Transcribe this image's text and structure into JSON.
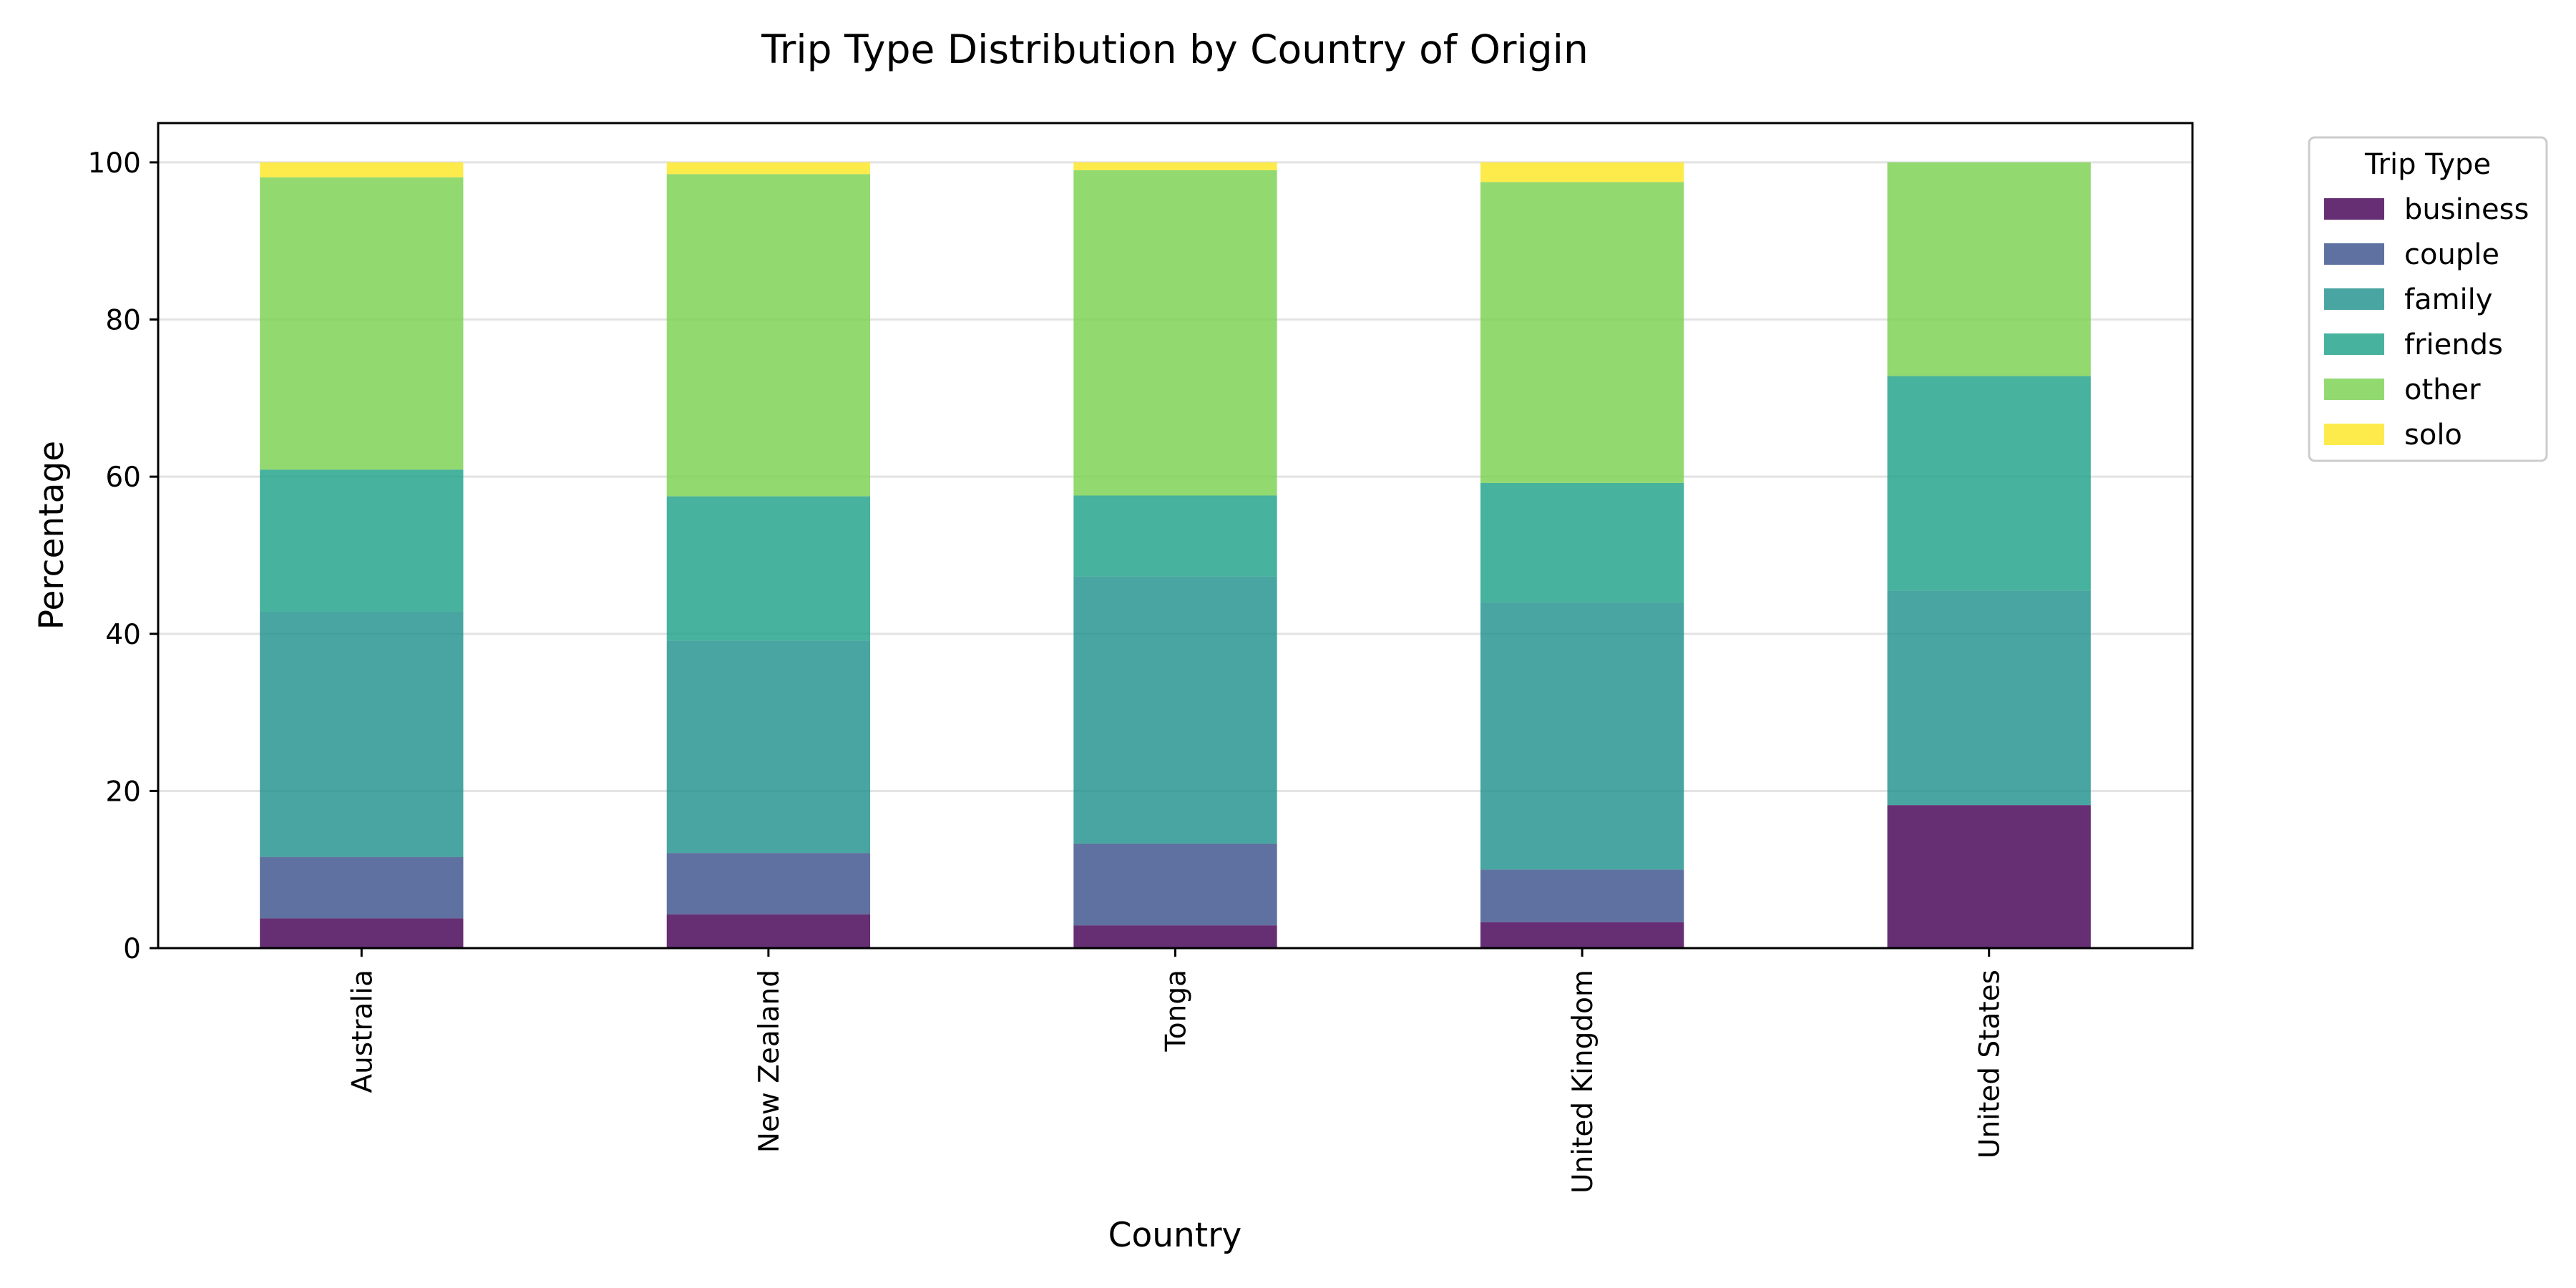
{
  "chart_data": {
    "type": "bar",
    "stacked": true,
    "title": "Trip Type Distribution by Country of Origin",
    "xlabel": "Country",
    "ylabel": "Percentage",
    "ylim": [
      0,
      105
    ],
    "yticks": [
      0,
      20,
      40,
      60,
      80,
      100
    ],
    "grid": "y",
    "legend_title": "Trip Type",
    "legend_position": "outside-top-right",
    "categories": [
      "Australia",
      "New Zealand",
      "Tonga",
      "United Kingdom",
      "United States"
    ],
    "series": [
      {
        "name": "business",
        "color": "#440154",
        "values": [
          3.8,
          4.3,
          2.9,
          3.3,
          18.2
        ]
      },
      {
        "name": "couple",
        "color": "#3b528b",
        "values": [
          7.8,
          7.8,
          10.4,
          6.7,
          0
        ]
      },
      {
        "name": "family",
        "color": "#21918c",
        "values": [
          31.2,
          27.0,
          34.0,
          34.0,
          27.3
        ]
      },
      {
        "name": "friends",
        "color": "#1fa187",
        "values": [
          18.1,
          18.4,
          10.3,
          15.2,
          27.3
        ]
      },
      {
        "name": "other",
        "color": "#7ad151",
        "values": [
          37.2,
          41.0,
          41.4,
          38.3,
          27.2
        ]
      },
      {
        "name": "solo",
        "color": "#fde725",
        "values": [
          1.9,
          1.5,
          1.0,
          2.5,
          0
        ]
      }
    ]
  }
}
